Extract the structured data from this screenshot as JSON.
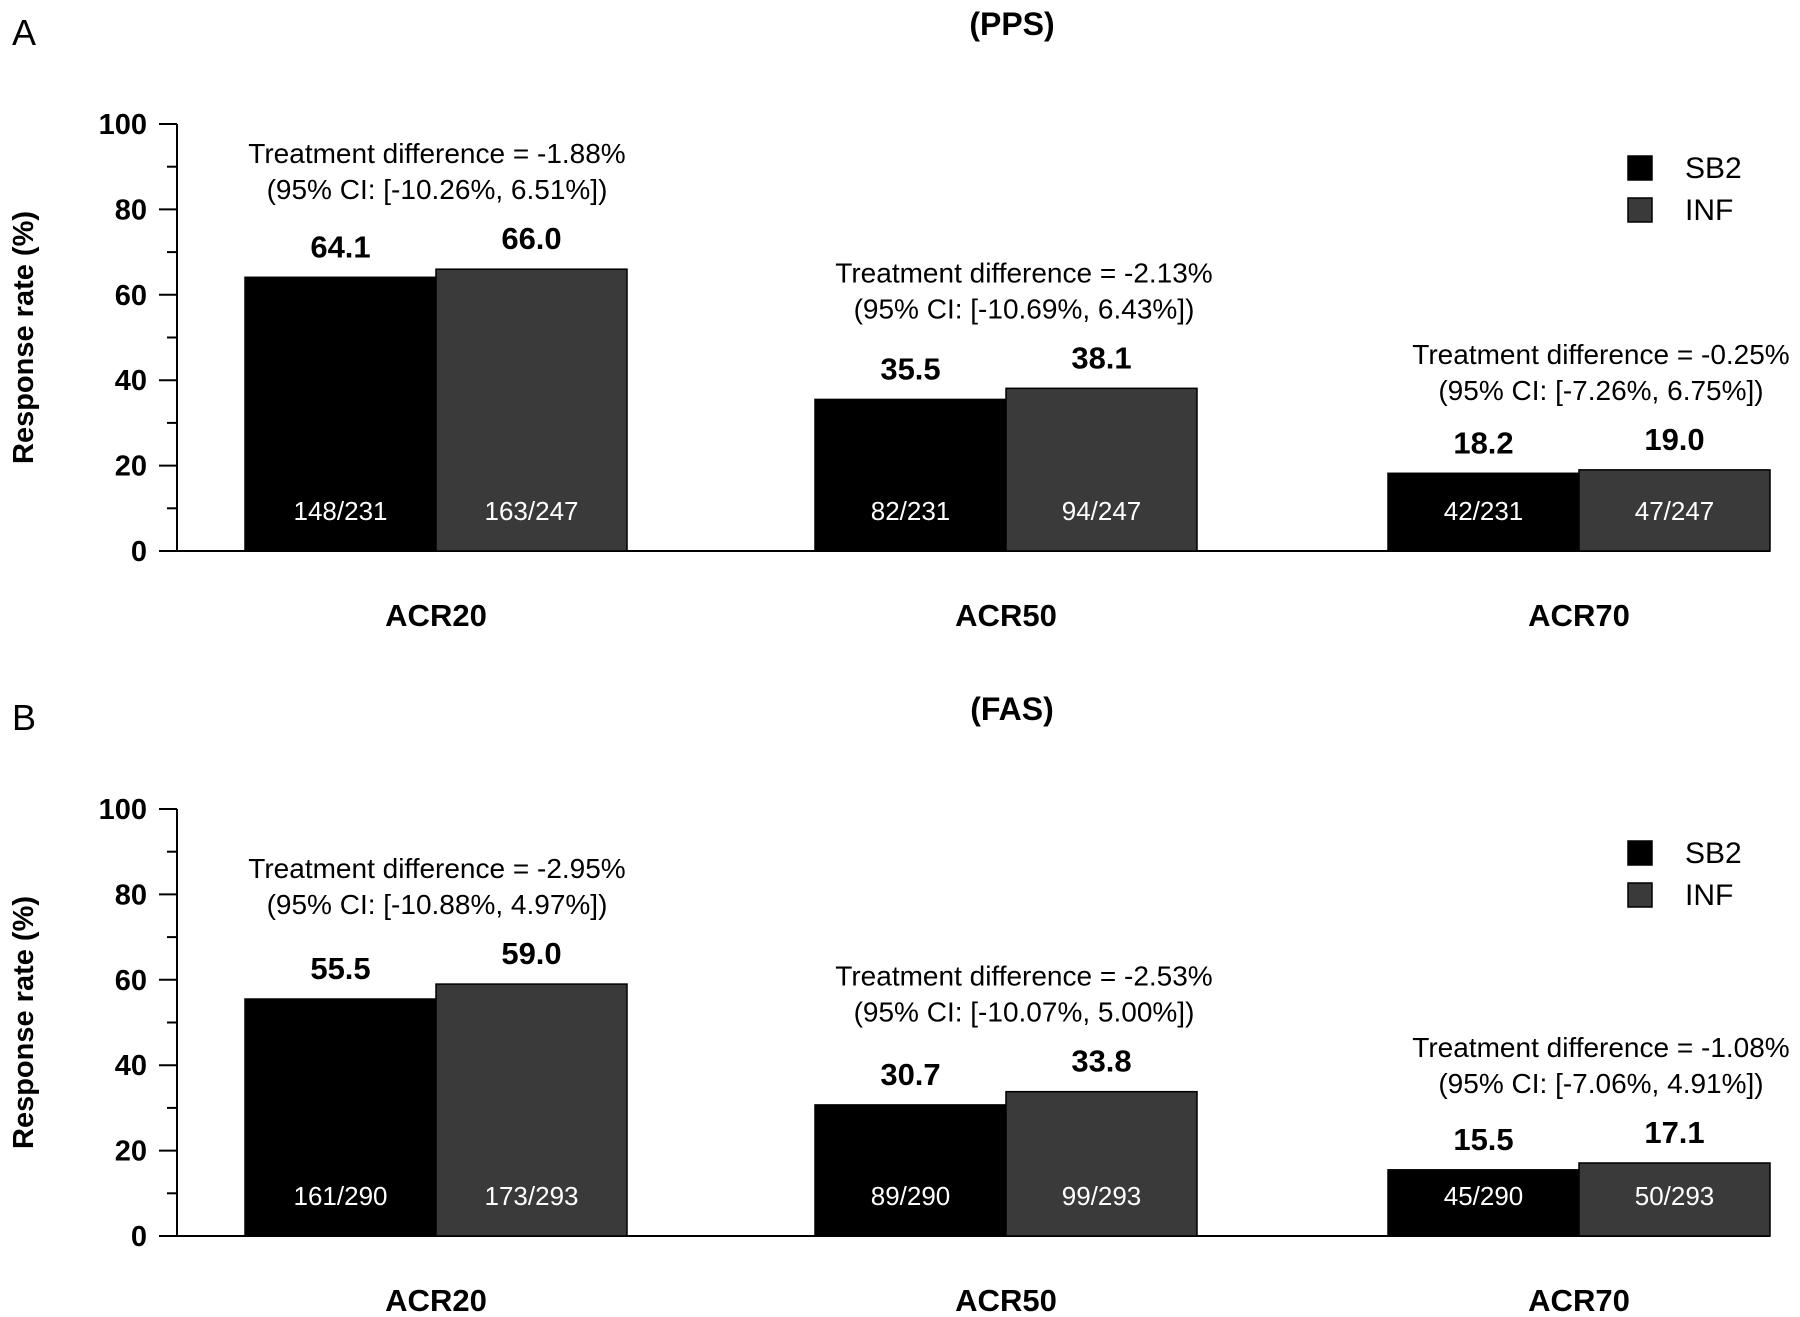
{
  "chart_data": [
    {
      "type": "bar",
      "panel": "A",
      "title": "(PPS)",
      "ylabel": "Response rate (%)",
      "ylim": [
        0,
        100
      ],
      "yticks": [
        0,
        20,
        40,
        60,
        80,
        100
      ],
      "categories": [
        "ACR20",
        "ACR50",
        "ACR70"
      ],
      "series": [
        {
          "name": "SB2",
          "color": "#000000",
          "values": [
            64.1,
            35.5,
            18.2
          ],
          "value_labels": [
            "64.1",
            "35.5",
            "18.2"
          ],
          "counts": [
            "148/231",
            "82/231",
            "42/231"
          ]
        },
        {
          "name": "INF",
          "color": "#3a3a3a",
          "values": [
            66.0,
            38.1,
            19.0
          ],
          "value_labels": [
            "66.0",
            "38.1",
            "19.0"
          ],
          "counts": [
            "163/247",
            "94/247",
            "47/247"
          ]
        }
      ],
      "annotations": [
        {
          "line1": "Treatment difference = -1.88%",
          "line2": "(95% CI: [-10.26%, 6.51%])"
        },
        {
          "line1": "Treatment difference = -2.13%",
          "line2": "(95% CI: [-10.69%, 6.43%])"
        },
        {
          "line1": "Treatment difference = -0.25%",
          "line2": "(95% CI: [-7.26%, 6.75%])"
        }
      ],
      "legend_position": "top-right"
    },
    {
      "type": "bar",
      "panel": "B",
      "title": "(FAS)",
      "ylabel": "Response rate (%)",
      "ylim": [
        0,
        100
      ],
      "yticks": [
        0,
        20,
        40,
        60,
        80,
        100
      ],
      "categories": [
        "ACR20",
        "ACR50",
        "ACR70"
      ],
      "series": [
        {
          "name": "SB2",
          "color": "#000000",
          "values": [
            55.5,
            30.7,
            15.5
          ],
          "value_labels": [
            "55.5",
            "30.7",
            "15.5"
          ],
          "counts": [
            "161/290",
            "89/290",
            "45/290"
          ]
        },
        {
          "name": "INF",
          "color": "#3a3a3a",
          "values": [
            59.0,
            33.8,
            17.1
          ],
          "value_labels": [
            "59.0",
            "33.8",
            "17.1"
          ],
          "counts": [
            "173/293",
            "99/293",
            "50/293"
          ]
        }
      ],
      "annotations": [
        {
          "line1": "Treatment difference = -2.95%",
          "line2": "(95% CI: [-10.88%, 4.97%])"
        },
        {
          "line1": "Treatment difference = -2.53%",
          "line2": "(95% CI: [-10.07%, 5.00%])"
        },
        {
          "line1": "Treatment difference = -1.08%",
          "line2": "(95% CI: [-7.06%, 4.91%])"
        }
      ],
      "legend_position": "top-right"
    }
  ]
}
